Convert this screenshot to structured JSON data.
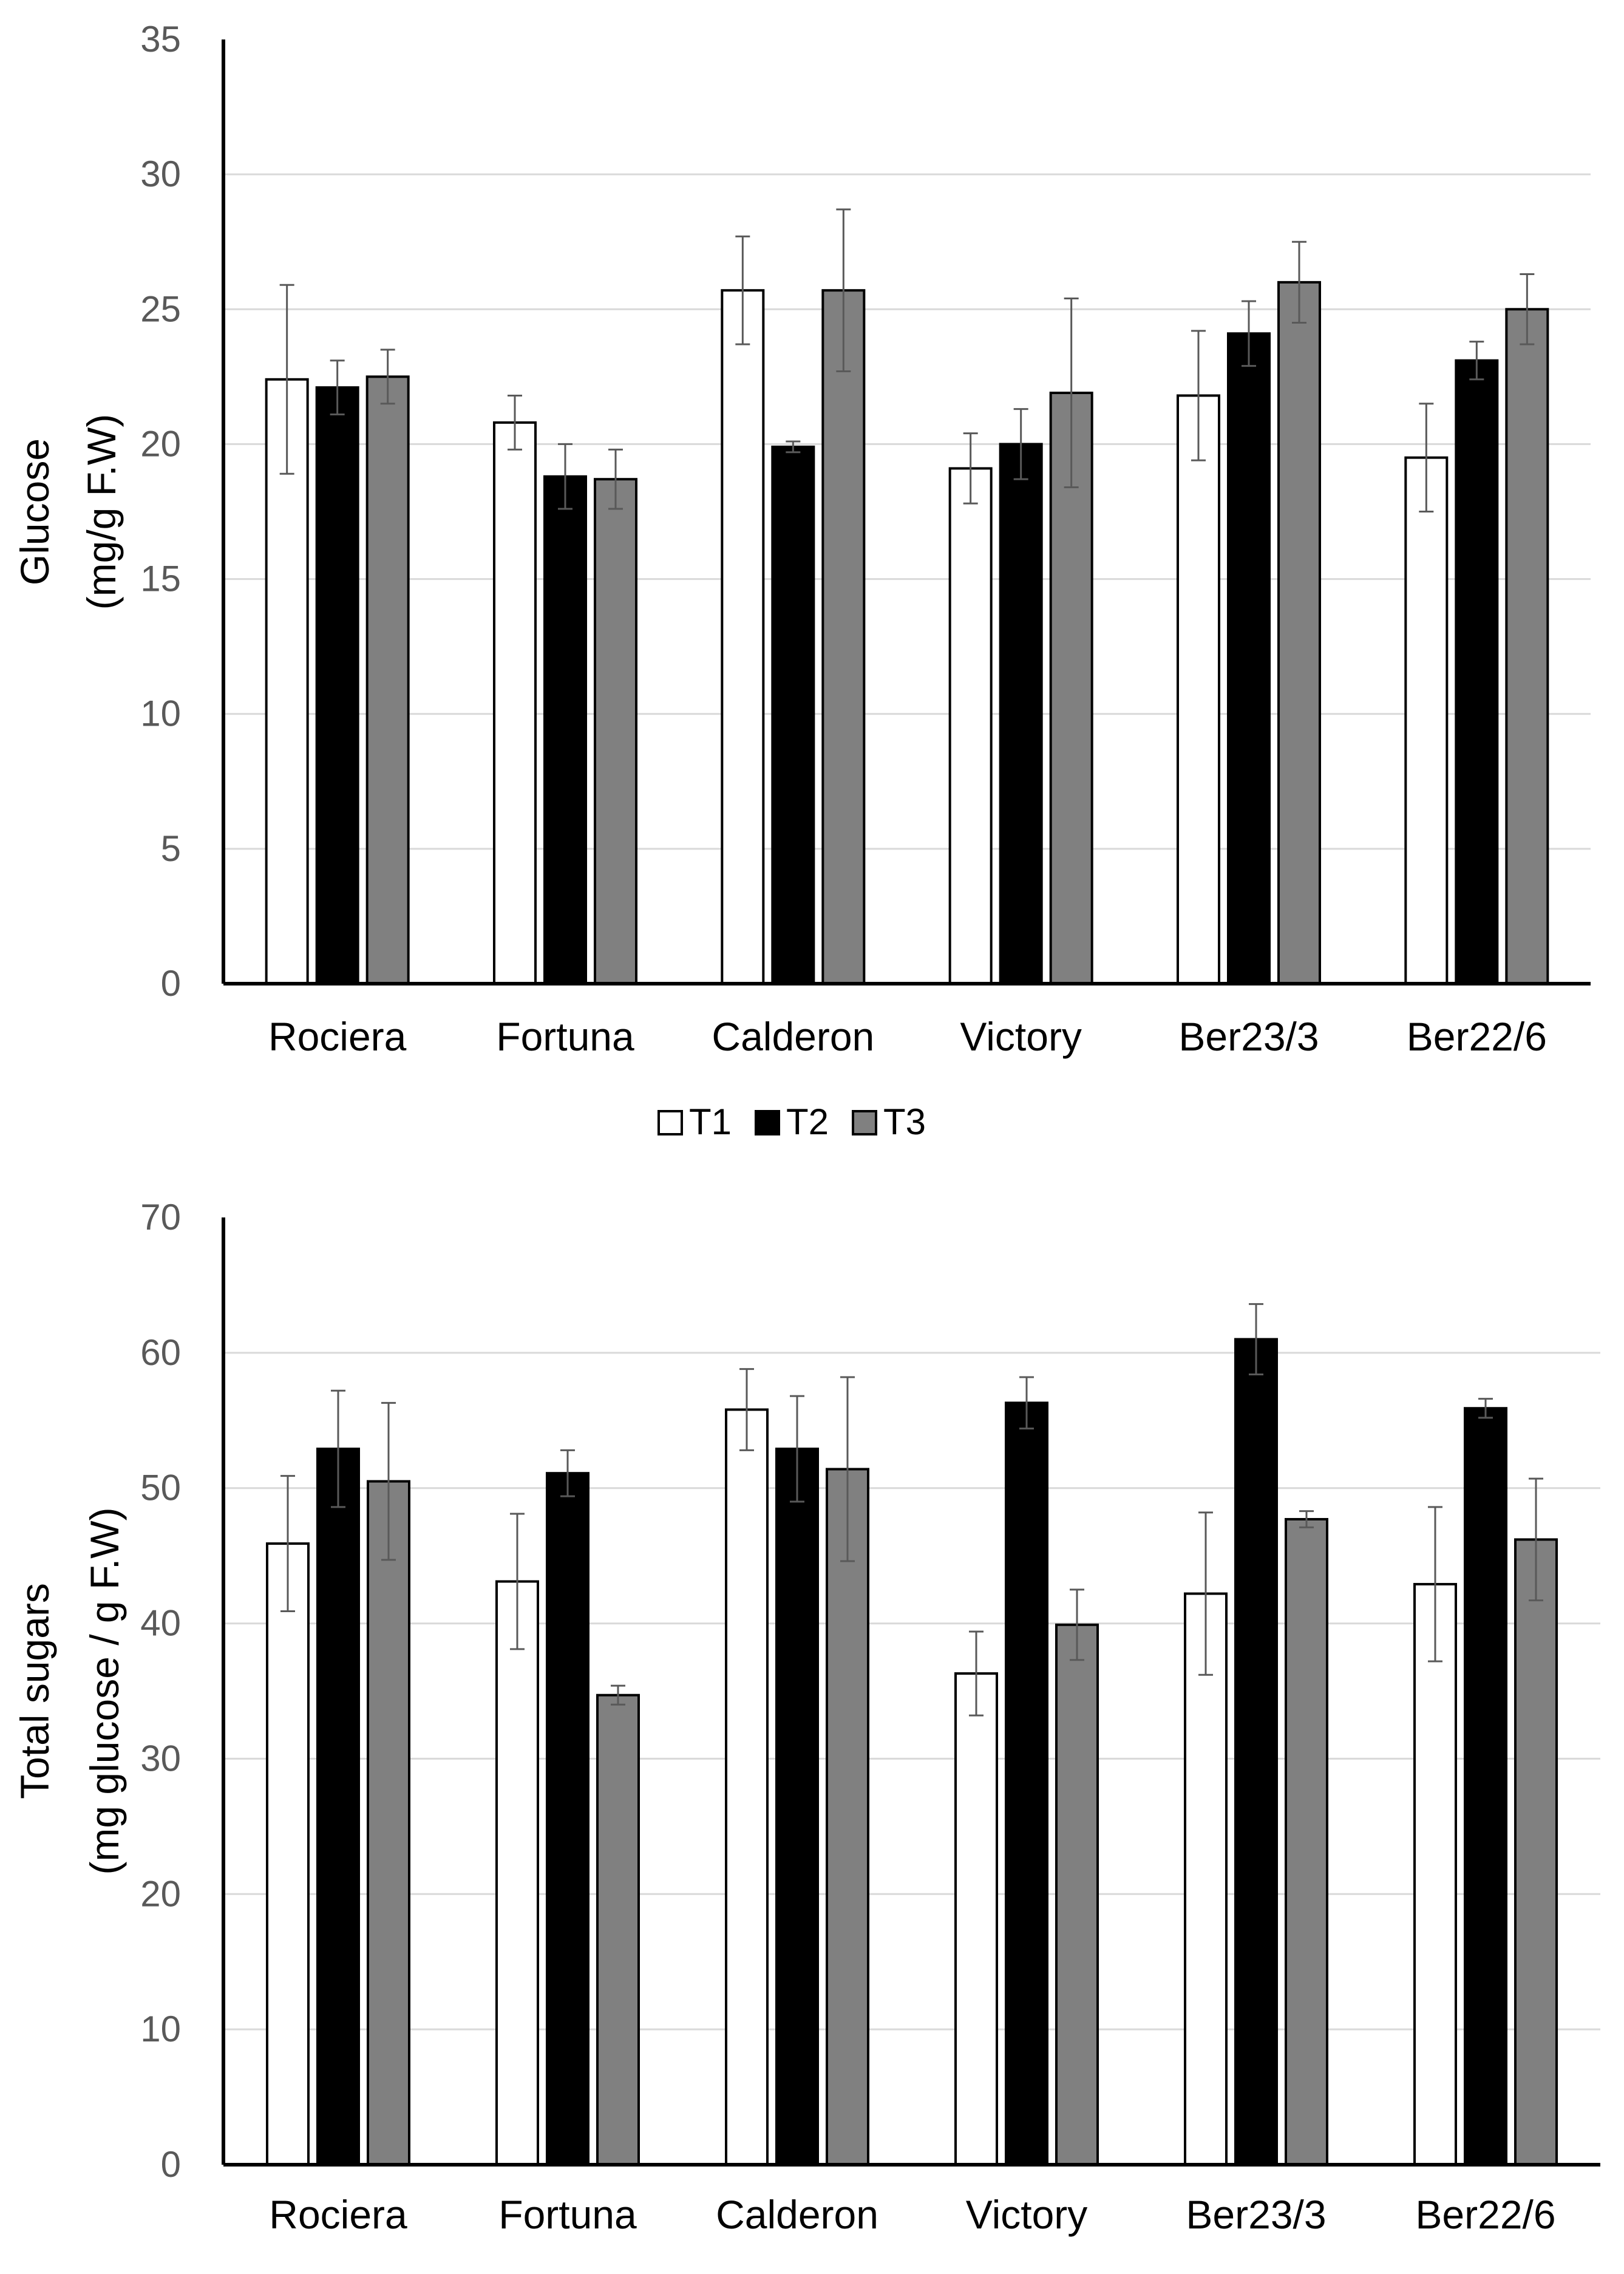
{
  "chart_data": [
    {
      "type": "bar",
      "title": "",
      "xlabel": "",
      "ylabel": [
        "Glucose",
        "(mg/g F.W)"
      ],
      "ylim": [
        0,
        35
      ],
      "yticks": [
        0,
        5,
        10,
        15,
        20,
        25,
        30,
        35
      ],
      "grid": true,
      "categories": [
        "Rociera",
        "Fortuna",
        "Calderon",
        "Victory",
        "Ber23/3",
        "Ber22/6"
      ],
      "series": [
        {
          "name": "T1",
          "color": "#ffffff",
          "values": [
            22.4,
            20.8,
            25.7,
            19.1,
            21.8,
            19.5
          ],
          "errors": [
            3.5,
            1.0,
            2.0,
            1.3,
            2.4,
            2.0
          ]
        },
        {
          "name": "T2",
          "color": "#000000",
          "values": [
            22.1,
            18.8,
            19.9,
            20.0,
            24.1,
            23.1
          ],
          "errors": [
            1.0,
            1.2,
            0.2,
            1.3,
            1.2,
            0.7
          ]
        },
        {
          "name": "T3",
          "color": "#808080",
          "values": [
            22.5,
            18.7,
            25.7,
            21.9,
            26.0,
            25.0
          ],
          "errors": [
            1.0,
            1.1,
            3.0,
            3.5,
            1.5,
            1.3
          ]
        }
      ],
      "legend": {
        "position": "bottom",
        "entries": [
          "T1",
          "T2",
          "T3"
        ]
      }
    },
    {
      "type": "bar",
      "title": "",
      "xlabel": "",
      "ylabel": [
        "Total sugars",
        "(mg glucose / g F.W)"
      ],
      "ylim": [
        0,
        70
      ],
      "yticks": [
        0,
        10,
        20,
        30,
        40,
        50,
        60,
        70
      ],
      "grid": true,
      "categories": [
        "Rociera",
        "Fortuna",
        "Calderon",
        "Victory",
        "Ber23/3",
        "Ber22/6"
      ],
      "series": [
        {
          "name": "T1",
          "color": "#ffffff",
          "values": [
            45.9,
            43.1,
            55.8,
            36.3,
            42.2,
            42.9
          ],
          "errors": [
            5.0,
            5.0,
            3.0,
            3.1,
            6.0,
            5.7
          ]
        },
        {
          "name": "T2",
          "color": "#000000",
          "values": [
            52.9,
            51.1,
            52.9,
            56.3,
            61.0,
            55.9
          ],
          "errors": [
            4.3,
            1.7,
            3.9,
            1.9,
            2.6,
            0.7
          ]
        },
        {
          "name": "T3",
          "color": "#808080",
          "values": [
            50.5,
            34.7,
            51.4,
            39.9,
            47.7,
            46.2
          ],
          "errors": [
            5.8,
            0.7,
            6.8,
            2.6,
            0.6,
            4.5
          ]
        }
      ]
    }
  ]
}
